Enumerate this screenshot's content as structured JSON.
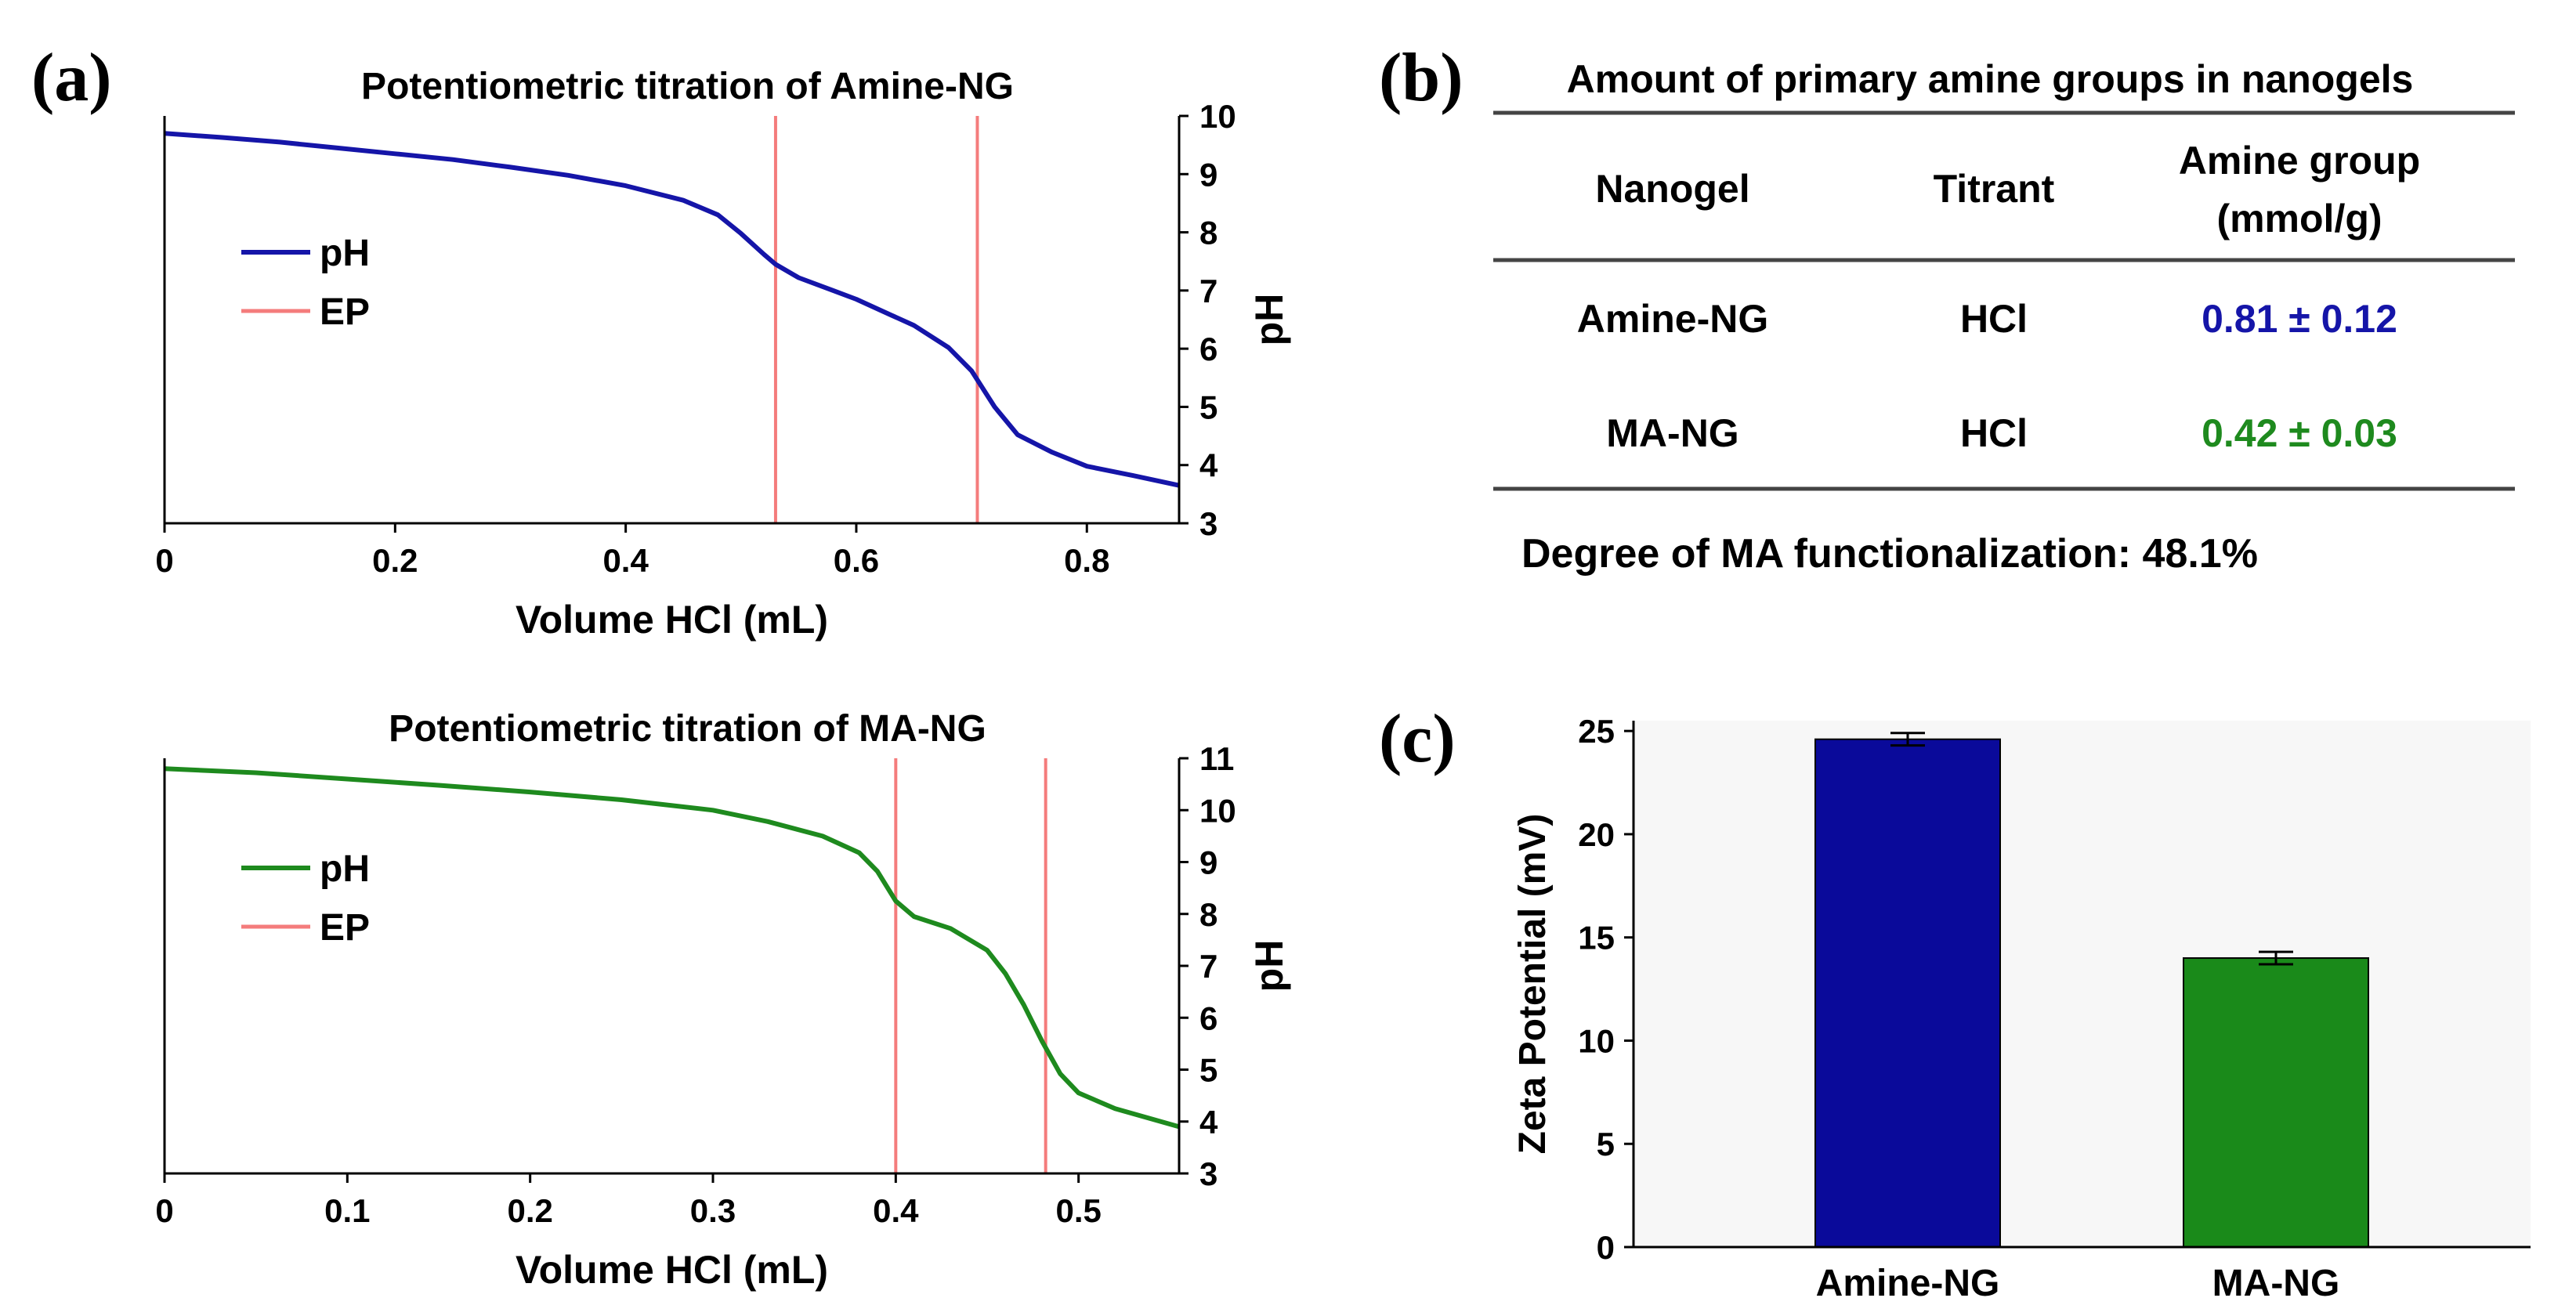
{
  "panel_labels": {
    "a": "(a)",
    "b": "(b)",
    "c": "(c)"
  },
  "colors": {
    "amine": "#1515a8",
    "ma": "#1e8a1e",
    "ep": "#f47c7c",
    "axis": "#000000",
    "table_rule": "#444444",
    "bar_amine": "#0a0a9a",
    "bar_ma": "#1a8a1a",
    "plot_bg_c": "#f7f7f7"
  },
  "table": {
    "title": "Amount of primary amine groups in nanogels",
    "headers": [
      "Nanogel",
      "Titrant",
      "Amine group",
      "(mmol/g)"
    ],
    "rows": [
      {
        "nanogel": "Amine-NG",
        "titrant": "HCl",
        "amine": "0.81 ± 0.12"
      },
      {
        "nanogel": "MA-NG",
        "titrant": "HCl",
        "amine": "0.42 ± 0.03"
      }
    ],
    "footnote": "Degree of MA functionalization: 48.1%"
  },
  "chart_data": [
    {
      "id": "amine-titration",
      "type": "line",
      "title": "Potentiometric titration of Amine-NG",
      "xlabel": "Volume HCl (mL)",
      "ylabel": "pH",
      "xlim": [
        0,
        0.88
      ],
      "ylim": [
        3,
        10
      ],
      "xticks": [
        0,
        0.2,
        0.4,
        0.6,
        0.8
      ],
      "xtick_labels": [
        "0",
        "0.2",
        "0.4",
        "0.6",
        "0.8"
      ],
      "yticks": [
        3,
        4,
        5,
        6,
        7,
        8,
        9,
        10
      ],
      "ytick_labels": [
        "3",
        "4",
        "5",
        "6",
        "7",
        "8",
        "9",
        "10"
      ],
      "legend": [
        "pH",
        "EP"
      ],
      "legend_position": "left",
      "endpoints": [
        0.53,
        0.705
      ],
      "series": [
        {
          "name": "pH",
          "x": [
            0,
            0.05,
            0.1,
            0.15,
            0.2,
            0.25,
            0.3,
            0.35,
            0.4,
            0.45,
            0.48,
            0.5,
            0.52,
            0.53,
            0.55,
            0.58,
            0.6,
            0.63,
            0.65,
            0.68,
            0.7,
            0.72,
            0.74,
            0.77,
            0.8,
            0.84,
            0.88
          ],
          "y": [
            9.7,
            9.63,
            9.55,
            9.45,
            9.35,
            9.25,
            9.12,
            8.98,
            8.8,
            8.55,
            8.3,
            7.98,
            7.62,
            7.45,
            7.22,
            7.0,
            6.85,
            6.58,
            6.4,
            6.02,
            5.62,
            5.0,
            4.52,
            4.22,
            3.98,
            3.82,
            3.65
          ]
        }
      ]
    },
    {
      "id": "ma-titration",
      "type": "line",
      "title": "Potentiometric titration of MA-NG",
      "xlabel": "Volume HCl (mL)",
      "ylabel": "pH",
      "xlim": [
        0,
        0.555
      ],
      "ylim": [
        3,
        11
      ],
      "xticks": [
        0,
        0.1,
        0.2,
        0.3,
        0.4,
        0.5
      ],
      "xtick_labels": [
        "0",
        "0.1",
        "0.2",
        "0.3",
        "0.4",
        "0.5"
      ],
      "yticks": [
        3,
        4,
        5,
        6,
        7,
        8,
        9,
        10,
        11
      ],
      "ytick_labels": [
        "3",
        "4",
        "5",
        "6",
        "7",
        "8",
        "9",
        "10",
        "11"
      ],
      "legend": [
        "pH",
        "EP"
      ],
      "legend_position": "left",
      "endpoints": [
        0.4,
        0.482
      ],
      "series": [
        {
          "name": "pH",
          "x": [
            0,
            0.05,
            0.1,
            0.15,
            0.2,
            0.25,
            0.3,
            0.33,
            0.36,
            0.38,
            0.39,
            0.4,
            0.41,
            0.43,
            0.45,
            0.46,
            0.47,
            0.48,
            0.49,
            0.5,
            0.52,
            0.555
          ],
          "y": [
            10.8,
            10.72,
            10.6,
            10.48,
            10.35,
            10.2,
            10.0,
            9.78,
            9.5,
            9.18,
            8.82,
            8.25,
            7.95,
            7.72,
            7.3,
            6.85,
            6.25,
            5.55,
            4.92,
            4.55,
            4.25,
            3.9
          ]
        }
      ]
    },
    {
      "id": "zeta-potential",
      "type": "bar",
      "title": "",
      "xlabel": "",
      "ylabel": "Zeta Potential (mV)",
      "ylim": [
        0,
        25.5
      ],
      "yticks": [
        0,
        5,
        10,
        15,
        20,
        25
      ],
      "ytick_labels": [
        "0",
        "5",
        "10",
        "15",
        "20",
        "25"
      ],
      "categories": [
        "Amine-NG",
        "MA-NG"
      ],
      "values": [
        24.6,
        14.0
      ],
      "errors": [
        0.3,
        0.3
      ]
    }
  ]
}
